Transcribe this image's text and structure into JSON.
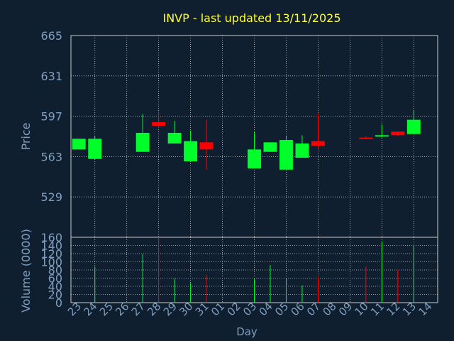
{
  "title": "INVP - last updated 13/11/2025",
  "colors": {
    "background": "#0f1f30",
    "panel": "#0f1f30",
    "title": "#ffff33",
    "axis_text": "#7f9fbf",
    "grid": "#c8c8c8",
    "up": "#00ff2a",
    "down": "#ff0000"
  },
  "chart_data": [
    {
      "type": "candlestick",
      "title": "INVP - last updated 13/11/2025",
      "xlabel": "",
      "ylabel": "Price",
      "ylim": [
        495,
        665
      ],
      "yticks": [
        529,
        563,
        597,
        631,
        665
      ],
      "grid": true,
      "categories": [
        "23",
        "24",
        "25",
        "26",
        "27",
        "28",
        "29",
        "30",
        "31",
        "01",
        "02",
        "03",
        "04",
        "05",
        "06",
        "07",
        "08",
        "09",
        "10",
        "11",
        "12",
        "13",
        "14"
      ],
      "candles": [
        {
          "x": "23",
          "open": 569,
          "close": 578,
          "high": 578,
          "low": 569
        },
        {
          "x": "24",
          "open": 561,
          "close": 578,
          "high": 580,
          "low": 561
        },
        {
          "x": "27",
          "open": 567,
          "close": 583,
          "high": 599,
          "low": 567
        },
        {
          "x": "28",
          "open": 592,
          "close": 589,
          "high": 601,
          "low": 587
        },
        {
          "x": "29",
          "open": 574,
          "close": 583,
          "high": 593,
          "low": 574
        },
        {
          "x": "30",
          "open": 559,
          "close": 576,
          "high": 585,
          "low": 559
        },
        {
          "x": "31",
          "open": 575,
          "close": 569,
          "high": 594,
          "low": 552
        },
        {
          "x": "03",
          "open": 553,
          "close": 569,
          "high": 584,
          "low": 553
        },
        {
          "x": "04",
          "open": 567,
          "close": 575,
          "high": 575,
          "low": 567
        },
        {
          "x": "05",
          "open": 552,
          "close": 577,
          "high": 580,
          "low": 552
        },
        {
          "x": "06",
          "open": 562,
          "close": 574,
          "high": 581,
          "low": 562
        },
        {
          "x": "07",
          "open": 576,
          "close": 572,
          "high": 599,
          "low": 570
        },
        {
          "x": "10",
          "open": 579,
          "close": 578,
          "high": 580,
          "low": 578
        },
        {
          "x": "11",
          "open": 580,
          "close": 581,
          "high": 590,
          "low": 579
        },
        {
          "x": "12",
          "open": 584,
          "close": 581,
          "high": 584,
          "low": 580
        },
        {
          "x": "13",
          "open": 582,
          "close": 594,
          "high": 602,
          "low": 582
        }
      ]
    },
    {
      "type": "bar",
      "xlabel": "Day",
      "ylabel": "Volume (0000)",
      "ylim": [
        0,
        160
      ],
      "yticks": [
        0,
        20,
        40,
        60,
        80,
        100,
        120,
        140,
        160
      ],
      "grid": true,
      "categories": [
        "23",
        "24",
        "25",
        "26",
        "27",
        "28",
        "29",
        "30",
        "31",
        "01",
        "02",
        "03",
        "04",
        "05",
        "06",
        "07",
        "08",
        "09",
        "10",
        "11",
        "12",
        "13",
        "14"
      ],
      "bars": [
        {
          "x": "24",
          "value": 88,
          "direction": "up"
        },
        {
          "x": "27",
          "value": 118,
          "direction": "up"
        },
        {
          "x": "28",
          "value": 160,
          "direction": "down"
        },
        {
          "x": "29",
          "value": 58,
          "direction": "up"
        },
        {
          "x": "30",
          "value": 48,
          "direction": "up"
        },
        {
          "x": "31",
          "value": 68,
          "direction": "down"
        },
        {
          "x": "03",
          "value": 58,
          "direction": "up"
        },
        {
          "x": "04",
          "value": 92,
          "direction": "up"
        },
        {
          "x": "05",
          "value": 60,
          "direction": "up"
        },
        {
          "x": "06",
          "value": 42,
          "direction": "up"
        },
        {
          "x": "07",
          "value": 62,
          "direction": "down"
        },
        {
          "x": "10",
          "value": 88,
          "direction": "down"
        },
        {
          "x": "11",
          "value": 150,
          "direction": "up"
        },
        {
          "x": "12",
          "value": 80,
          "direction": "down"
        },
        {
          "x": "13",
          "value": 140,
          "direction": "up"
        }
      ]
    }
  ]
}
